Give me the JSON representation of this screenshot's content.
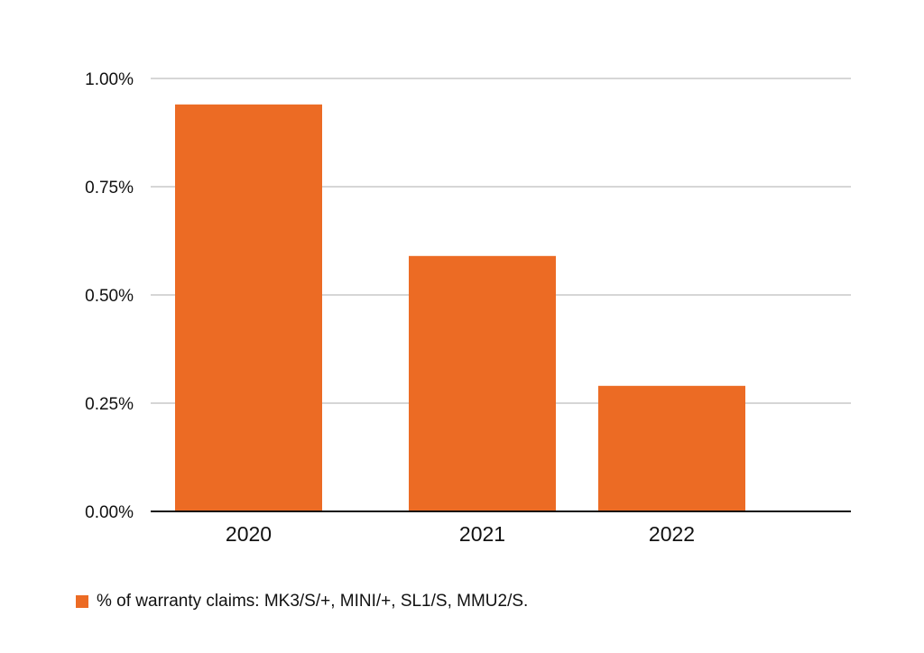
{
  "chart_data": {
    "type": "bar",
    "categories": [
      "2020",
      "2021",
      "2022"
    ],
    "series": [
      {
        "name": "% of warranty claims: MK3/S/+, MINI/+, SL1/S, MMU2/S.",
        "values": [
          0.94,
          0.59,
          0.29
        ],
        "color": "#ec6b24"
      }
    ],
    "ylim": [
      0,
      1.0
    ],
    "yticks": [
      "0.00%",
      "0.25%",
      "0.50%",
      "0.75%",
      "1.00%"
    ],
    "ytick_values": [
      0,
      0.25,
      0.5,
      0.75,
      1.0
    ],
    "title": "",
    "xlabel": "",
    "ylabel": "",
    "grid": true,
    "legend_position": "bottom-left",
    "colors": {
      "grid": "#c8c8c8",
      "axis": "#111111"
    }
  }
}
